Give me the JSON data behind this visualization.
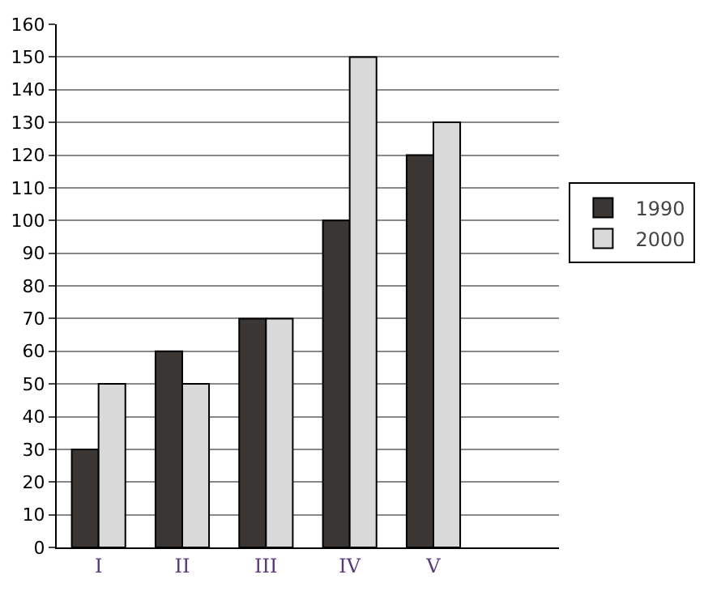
{
  "chart_data": {
    "type": "bar",
    "categories": [
      "I",
      "II",
      "III",
      "IV",
      "V",
      null
    ],
    "series": [
      {
        "name": "1990",
        "color": "#3a3634",
        "values": [
          30,
          60,
          70,
          100,
          120,
          null
        ]
      },
      {
        "name": "2000",
        "color": "#d9d9d9",
        "values": [
          50,
          50,
          70,
          150,
          130,
          null
        ]
      }
    ],
    "ylim": [
      0,
      160
    ],
    "yticks": [
      0,
      10,
      20,
      30,
      40,
      50,
      60,
      70,
      80,
      90,
      100,
      110,
      120,
      130,
      140,
      150,
      160
    ],
    "grid": "y",
    "legend": "right"
  }
}
